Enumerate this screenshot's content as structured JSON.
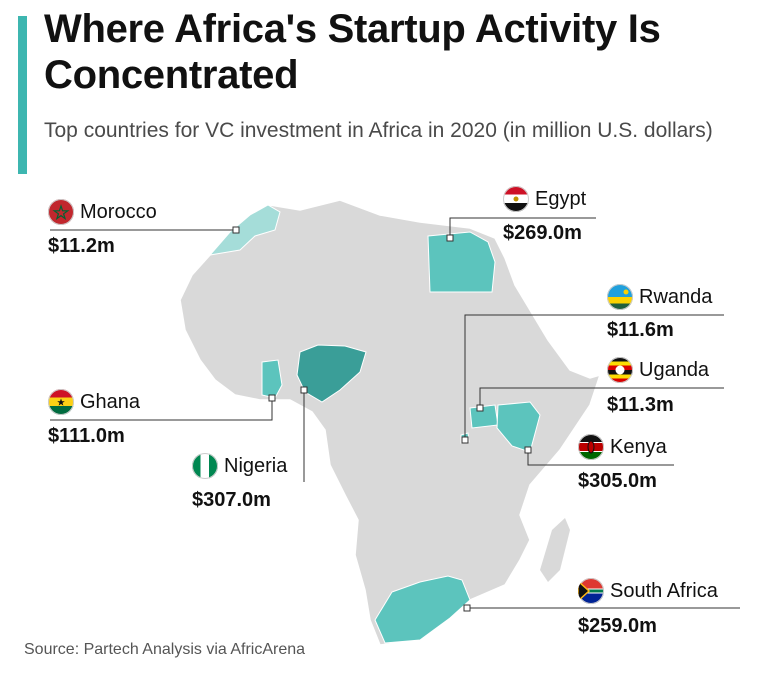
{
  "header": {
    "title": "Where Africa's Startup Activity Is Concentrated",
    "subtitle": "Top countries for VC investment in Africa in 2020 (in million U.S. dollars)"
  },
  "source": "Source: Partech Analysis via AfricArena",
  "colors": {
    "accent": "#3db6b0",
    "land": "#d9d9d9",
    "nigeria": "#3a9e98",
    "high": "#5cc4bd",
    "low": "#a5ddd9"
  },
  "countries": [
    {
      "name": "Morocco",
      "value": "$11.2m",
      "flag": "morocco-flag-icon"
    },
    {
      "name": "Egypt",
      "value": "$269.0m",
      "flag": "egypt-flag-icon"
    },
    {
      "name": "Rwanda",
      "value": "$11.6m",
      "flag": "rwanda-flag-icon"
    },
    {
      "name": "Uganda",
      "value": "$11.3m",
      "flag": "uganda-flag-icon"
    },
    {
      "name": "Ghana",
      "value": "$111.0m",
      "flag": "ghana-flag-icon"
    },
    {
      "name": "Kenya",
      "value": "$305.0m",
      "flag": "kenya-flag-icon"
    },
    {
      "name": "Nigeria",
      "value": "$307.0m",
      "flag": "nigeria-flag-icon"
    },
    {
      "name": "South Africa",
      "value": "$259.0m",
      "flag": "south-africa-flag-icon"
    }
  ]
}
